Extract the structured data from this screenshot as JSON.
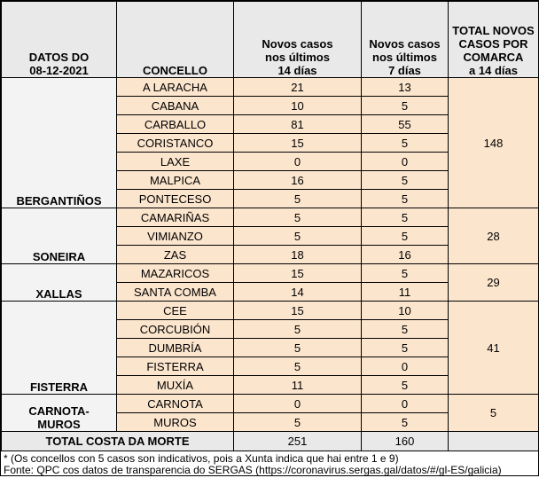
{
  "colors": {
    "cell_bg": "#fce5cd",
    "header_bg": "#e9e9e9",
    "comarca_bg": "#f3f3f3",
    "border": "#000000"
  },
  "table": {
    "header": {
      "date_label": "DATOS DO\n08-12-2021",
      "concello": "CONCELLO",
      "cases14": "Novos casos\nnos últimos\n14 días",
      "cases7": "Novos casos\nnos últimos\n7 días",
      "total_comarca": "TOTAL NOVOS\nCASOS POR\nCOMARCA\na 14 días"
    },
    "groups": [
      {
        "comarca": "BERGANTIÑOS",
        "total14": 148,
        "rows": [
          {
            "name": "A LARACHA",
            "c14": 21,
            "c7": 13
          },
          {
            "name": "CABANA",
            "c14": 10,
            "c7": 5
          },
          {
            "name": "CARBALLO",
            "c14": 81,
            "c7": 55
          },
          {
            "name": "CORISTANCO",
            "c14": 15,
            "c7": 5
          },
          {
            "name": "LAXE",
            "c14": 0,
            "c7": 0
          },
          {
            "name": "MALPICA",
            "c14": 16,
            "c7": 5
          },
          {
            "name": "PONTECESO",
            "c14": 5,
            "c7": 5
          }
        ]
      },
      {
        "comarca": "SONEIRA",
        "total14": 28,
        "rows": [
          {
            "name": "CAMARIÑAS",
            "c14": 5,
            "c7": 5
          },
          {
            "name": "VIMIANZO",
            "c14": 5,
            "c7": 5
          },
          {
            "name": "ZAS",
            "c14": 18,
            "c7": 16
          }
        ]
      },
      {
        "comarca": "XALLAS",
        "total14": 29,
        "rows": [
          {
            "name": "MAZARICOS",
            "c14": 15,
            "c7": 5
          },
          {
            "name": "SANTA COMBA",
            "c14": 14,
            "c7": 11
          }
        ]
      },
      {
        "comarca": "FISTERRA",
        "total14": 41,
        "rows": [
          {
            "name": "CEE",
            "c14": 15,
            "c7": 10
          },
          {
            "name": "CORCUBIÓN",
            "c14": 5,
            "c7": 5
          },
          {
            "name": "DUMBRÍA",
            "c14": 5,
            "c7": 5
          },
          {
            "name": "FISTERRA",
            "c14": 5,
            "c7": 0
          },
          {
            "name": "MUXÍA",
            "c14": 11,
            "c7": 5
          }
        ]
      },
      {
        "comarca": "CARNOTA-\nMUROS",
        "total14": 5,
        "rows": [
          {
            "name": "CARNOTA",
            "c14": 0,
            "c7": 0
          },
          {
            "name": "MUROS",
            "c14": 5,
            "c7": 5
          }
        ]
      }
    ],
    "total_row": {
      "label": "TOTAL COSTA DA MORTE",
      "cases14": 251,
      "cases7": 160
    }
  },
  "footer": {
    "note": "* (Os concellos con 5 casos son indicativos, pois a Xunta indica que hai entre 1 e 9)",
    "source": "Fonte: QPC cos datos de transparencia do SERGAS (https://coronavirus.sergas.gal/datos/#/gl-ES/galicia)"
  }
}
